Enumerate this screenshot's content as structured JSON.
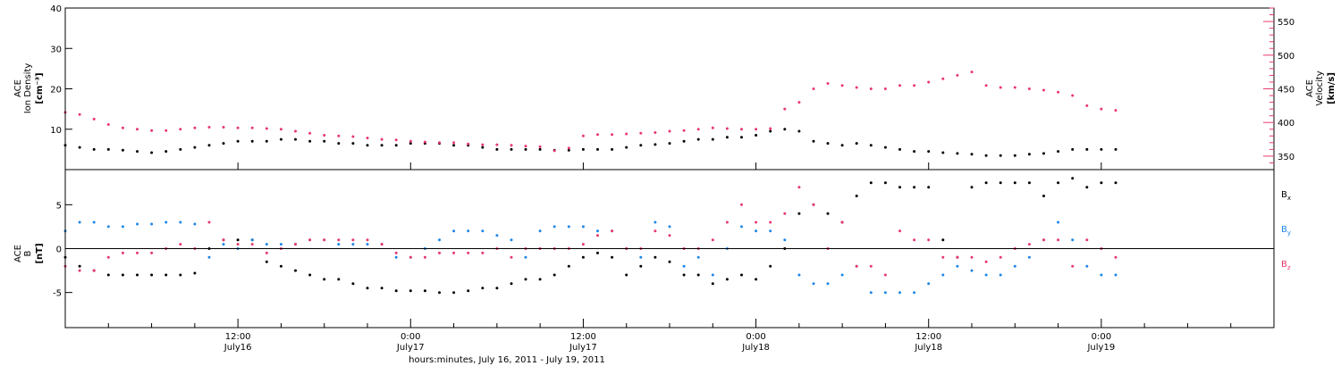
{
  "colors": {
    "black": "#000000",
    "pink": "#e8386b",
    "blue": "#1f86e6",
    "axis": "#000000",
    "background": "#ffffff"
  },
  "chart_data": [
    {
      "type": "scatter",
      "name": "ACE ion density and velocity",
      "ylabel_left_lines": [
        "ACE",
        "Ion Density",
        "[cm⁻³]"
      ],
      "ylabel_right_lines": [
        "ACE",
        "Velocity",
        "[km/s]"
      ],
      "ylim_left": [
        0,
        40
      ],
      "ylim_right": [
        330,
        570
      ],
      "yticks_left": [
        10,
        20,
        30,
        40
      ],
      "yticks_right": [
        350,
        400,
        450,
        500,
        550
      ],
      "xlim_hours": [
        0,
        84
      ],
      "series": [
        {
          "key": "density",
          "axis": "left",
          "color": "black",
          "x_hours": [
            0,
            1,
            2,
            3,
            4,
            5,
            6,
            7,
            8,
            9,
            10,
            11,
            12,
            13,
            14,
            15,
            16,
            17,
            18,
            19,
            20,
            21,
            22,
            23,
            24,
            25,
            26,
            27,
            28,
            29,
            30,
            31,
            32,
            33,
            34,
            35,
            36,
            37,
            38,
            39,
            40,
            41,
            42,
            43,
            44,
            45,
            46,
            47,
            48,
            49,
            50,
            51,
            52,
            53,
            54,
            55,
            56,
            57,
            58,
            59,
            60,
            61,
            62,
            63,
            64,
            65,
            66,
            67,
            68,
            69,
            70,
            71,
            72,
            73
          ],
          "values": [
            6,
            5.5,
            5,
            5,
            4.8,
            4.5,
            4.2,
            4.5,
            5,
            5.5,
            6,
            6.5,
            7,
            7,
            7,
            7.5,
            7.5,
            7,
            7,
            6.5,
            6.5,
            6,
            6,
            6,
            6.5,
            6.5,
            6.5,
            6,
            6,
            5.5,
            5,
            5,
            5,
            5,
            4.8,
            4.8,
            5,
            5,
            5,
            5.5,
            6,
            6.2,
            6.5,
            7,
            7.5,
            7.5,
            8,
            8,
            8.5,
            9.5,
            10,
            9.5,
            7,
            6.5,
            6,
            6.5,
            6,
            5.5,
            5,
            4.5,
            4.5,
            4.2,
            4,
            3.8,
            3.5,
            3.5,
            3.5,
            3.8,
            4,
            4.5,
            5,
            5,
            5,
            5
          ]
        },
        {
          "key": "velocity",
          "axis": "right",
          "color": "pink",
          "x_hours": [
            0,
            1,
            2,
            3,
            4,
            5,
            6,
            7,
            8,
            9,
            10,
            11,
            12,
            13,
            14,
            15,
            16,
            17,
            18,
            19,
            20,
            21,
            22,
            23,
            24,
            25,
            26,
            27,
            28,
            29,
            30,
            31,
            32,
            33,
            34,
            35,
            36,
            37,
            38,
            39,
            40,
            41,
            42,
            43,
            44,
            45,
            46,
            47,
            48,
            49,
            50,
            51,
            52,
            53,
            54,
            55,
            56,
            57,
            58,
            59,
            60,
            61,
            62,
            63,
            64,
            65,
            66,
            67,
            68,
            69,
            70,
            71,
            72,
            73
          ],
          "values": [
            415,
            412,
            405,
            397,
            392,
            390,
            388,
            388,
            390,
            392,
            393,
            393,
            392,
            392,
            391,
            390,
            387,
            384,
            381,
            380,
            379,
            377,
            375,
            374,
            372,
            371,
            370,
            370,
            368,
            367,
            367,
            366,
            365,
            364,
            358,
            362,
            380,
            382,
            382,
            383,
            384,
            385,
            387,
            388,
            390,
            392,
            391,
            390,
            390,
            391,
            420,
            430,
            450,
            458,
            455,
            452,
            450,
            450,
            455,
            455,
            460,
            465,
            470,
            475,
            455,
            452,
            452,
            450,
            448,
            445,
            440,
            425,
            420,
            418
          ]
        }
      ]
    },
    {
      "type": "scatter",
      "name": "ACE magnetic field components",
      "ylabel_lines": [
        "ACE",
        "B",
        "[nT]"
      ],
      "ylim": [
        -9,
        9
      ],
      "yticks": [
        -5,
        0,
        5
      ],
      "xlim_hours": [
        0,
        84
      ],
      "x_tick_hours": [
        12,
        24,
        36,
        48,
        60,
        72
      ],
      "x_ticks": [
        {
          "line1": "12:00",
          "line2": "July16"
        },
        {
          "line1": "0:00",
          "line2": "July17"
        },
        {
          "line1": "12:00",
          "line2": "July17"
        },
        {
          "line1": "0:00",
          "line2": "July18"
        },
        {
          "line1": "12:00",
          "line2": "July18"
        },
        {
          "line1": "0:00",
          "line2": "July19"
        }
      ],
      "xlabel": "hours:minutes, July 16, 2011 - July 19, 2011",
      "legend": [
        {
          "label": "B",
          "sub": "x",
          "color": "black"
        },
        {
          "label": "B",
          "sub": "y",
          "color": "blue"
        },
        {
          "label": "B",
          "sub": "z",
          "color": "pink"
        }
      ],
      "series": [
        {
          "key": "bx",
          "color": "black",
          "x_hours": [
            0,
            1,
            2,
            3,
            4,
            5,
            6,
            7,
            8,
            9,
            10,
            11,
            12,
            13,
            14,
            15,
            16,
            17,
            18,
            19,
            20,
            21,
            22,
            23,
            24,
            25,
            26,
            27,
            28,
            29,
            30,
            31,
            32,
            33,
            34,
            35,
            36,
            37,
            38,
            39,
            40,
            41,
            42,
            43,
            44,
            45,
            46,
            47,
            48,
            49,
            50,
            51,
            52,
            53,
            54,
            55,
            56,
            57,
            58,
            59,
            60,
            61,
            62,
            63,
            64,
            65,
            66,
            67,
            68,
            69,
            70,
            71,
            72,
            73
          ],
          "values": [
            -1,
            -2,
            -2.5,
            -3,
            -3,
            -3,
            -3,
            -3,
            -3,
            -2.8,
            0,
            1,
            1,
            1,
            -1.5,
            -2,
            -2.5,
            -3,
            -3.5,
            -3.5,
            -4,
            -4.5,
            -4.5,
            -4.8,
            -4.8,
            -4.8,
            -5,
            -5,
            -4.8,
            -4.5,
            -4.5,
            -4,
            -3.5,
            -3.5,
            -3,
            -2,
            -1,
            -0.5,
            -1,
            -3,
            -2,
            -1,
            -1.5,
            -3,
            -3,
            -4,
            -3.5,
            -3,
            -3.5,
            -2,
            0,
            4,
            5,
            4,
            3,
            6,
            7.5,
            7.5,
            7,
            7,
            7,
            1,
            -1,
            7,
            7.5,
            7.5,
            7.5,
            7.5,
            6,
            7.5,
            8,
            7,
            7.5,
            7.5
          ]
        },
        {
          "key": "by",
          "color": "blue",
          "x_hours": [
            0,
            1,
            2,
            3,
            4,
            5,
            6,
            7,
            8,
            9,
            10,
            11,
            12,
            13,
            14,
            15,
            16,
            17,
            18,
            19,
            20,
            21,
            22,
            23,
            24,
            25,
            26,
            27,
            28,
            29,
            30,
            31,
            32,
            33,
            34,
            35,
            36,
            37,
            38,
            39,
            40,
            41,
            42,
            43,
            44,
            45,
            46,
            47,
            48,
            49,
            50,
            51,
            52,
            53,
            54,
            55,
            56,
            57,
            58,
            59,
            60,
            61,
            62,
            63,
            64,
            65,
            66,
            67,
            68,
            69,
            70,
            71,
            72,
            73
          ],
          "values": [
            2,
            3,
            3,
            2.5,
            2.5,
            2.8,
            2.8,
            3,
            3,
            2.8,
            -1,
            0.5,
            0,
            1,
            0.5,
            0.5,
            0.5,
            1,
            1,
            0.5,
            0.5,
            0.5,
            0.5,
            -1,
            -1,
            0,
            1,
            2,
            2,
            2,
            1.5,
            1,
            -1,
            2,
            2.5,
            2.5,
            2.5,
            2,
            2,
            0,
            -1,
            3,
            2.5,
            -2,
            -1,
            -3,
            0,
            2.5,
            2,
            2,
            1,
            -3,
            -4,
            -4,
            -3,
            -2,
            -5,
            -5,
            -5,
            -5,
            -4,
            -3,
            -2,
            -2.5,
            -3,
            -3,
            -2,
            -1,
            1,
            3,
            1,
            -2,
            -3,
            -3
          ]
        },
        {
          "key": "bz",
          "color": "pink",
          "x_hours": [
            0,
            1,
            2,
            3,
            4,
            5,
            6,
            7,
            8,
            9,
            10,
            11,
            12,
            13,
            14,
            15,
            16,
            17,
            18,
            19,
            20,
            21,
            22,
            23,
            24,
            25,
            26,
            27,
            28,
            29,
            30,
            31,
            32,
            33,
            34,
            35,
            36,
            37,
            38,
            39,
            40,
            41,
            42,
            43,
            44,
            45,
            46,
            47,
            48,
            49,
            50,
            51,
            52,
            53,
            54,
            55,
            56,
            57,
            58,
            59,
            60,
            61,
            62,
            63,
            64,
            65,
            66,
            67,
            68,
            69,
            70,
            71,
            72,
            73
          ],
          "values": [
            -2,
            -2.5,
            -2.5,
            -1,
            -0.5,
            -0.5,
            -0.5,
            0,
            0.5,
            0,
            3,
            1,
            0.5,
            0.5,
            -0.5,
            0,
            0.5,
            1,
            1,
            1,
            1,
            1,
            0.5,
            -0.5,
            -1,
            -1,
            -0.5,
            -0.5,
            -0.5,
            -0.5,
            0,
            -1,
            0,
            0,
            0,
            0,
            0.5,
            1.5,
            2,
            0,
            0,
            2,
            1.5,
            0,
            0,
            1,
            3,
            5,
            3,
            3,
            4,
            7,
            5,
            0,
            3,
            -2,
            -2,
            -3,
            2,
            1,
            1,
            -1,
            -1,
            -1,
            -1.5,
            -1,
            0,
            0.5,
            1,
            1,
            -2,
            1,
            0,
            -1
          ]
        }
      ]
    }
  ]
}
